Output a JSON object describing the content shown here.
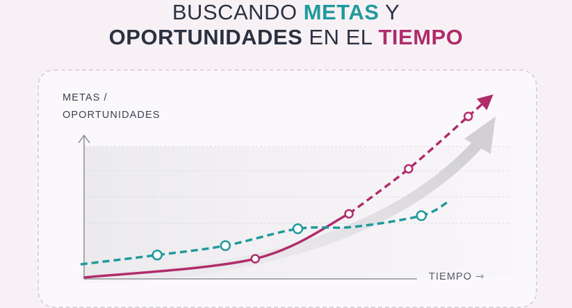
{
  "title": {
    "line1_plain": "BUSCANDO ",
    "line1_teal": "METAS",
    "line1_end": " Y",
    "line2_bold": "OPORTUNIDADES",
    "line2_plain": " EN EL ",
    "line2_magenta": "TIEMPO"
  },
  "colors": {
    "teal": "#1f9a9b",
    "magenta": "#b02c6b",
    "dark": "#2b3140",
    "grey_arrow": "#d6d4d8"
  },
  "chart_data": {
    "type": "line",
    "title": "BUSCANDO METAS Y OPORTUNIDADES EN EL TIEMPO",
    "ylabel_line1": "METAS /",
    "ylabel_line2": "OPORTUNIDADES",
    "xlabel": "TIEMPO",
    "xlabel_arrow": "⇾",
    "xlim": [
      0,
      10
    ],
    "ylim": [
      0,
      10
    ],
    "grid": true,
    "series": [
      {
        "color": "#b02c6b",
        "style": "solid-then-dashed",
        "points": [
          {
            "x": 0.0,
            "y": 0.0
          },
          {
            "x": 4.0,
            "y": 1.0
          },
          {
            "x": 6.2,
            "y": 3.4
          },
          {
            "x": 7.6,
            "y": 5.8
          },
          {
            "x": 9.0,
            "y": 8.6
          }
        ],
        "markers": [
          {
            "x": 4.0,
            "y": 1.0
          },
          {
            "x": 6.2,
            "y": 3.4
          },
          {
            "x": 7.6,
            "y": 5.8
          },
          {
            "x": 9.0,
            "y": 8.6
          }
        ]
      },
      {
        "color": "#1f9a9b",
        "style": "dashed",
        "points": [
          {
            "x": -0.1,
            "y": 0.7
          },
          {
            "x": 1.7,
            "y": 1.2
          },
          {
            "x": 3.3,
            "y": 1.7
          },
          {
            "x": 5.0,
            "y": 2.6
          },
          {
            "x": 6.3,
            "y": 2.7
          },
          {
            "x": 7.9,
            "y": 3.3
          },
          {
            "x": 8.5,
            "y": 4.0
          }
        ],
        "markers": [
          {
            "x": 1.7,
            "y": 1.2
          },
          {
            "x": 3.3,
            "y": 1.7
          },
          {
            "x": 5.0,
            "y": 2.6
          },
          {
            "x": 7.9,
            "y": 3.3
          }
        ]
      }
    ]
  }
}
